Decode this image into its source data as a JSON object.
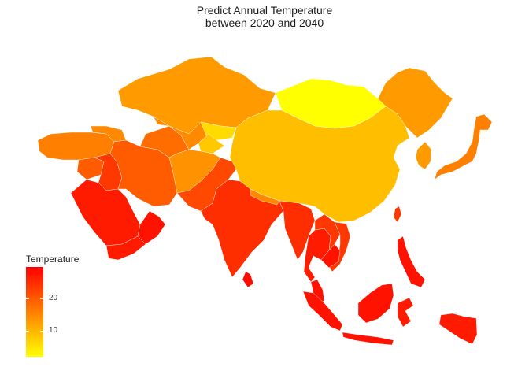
{
  "title_line1": "Predict Annual Temperature",
  "title_line2": "between 2020 and 2040",
  "legend": {
    "title": "Temperature",
    "range": [
      2,
      30
    ],
    "ticks": [
      {
        "value": 20,
        "label": "20"
      },
      {
        "value": 10,
        "label": "10"
      }
    ],
    "colors": [
      "#ffff00",
      "#ffaa00",
      "#ff5500",
      "#ff0000"
    ]
  },
  "regions": [
    {
      "name": "Kazakhstan",
      "temperature": 13
    },
    {
      "name": "Russia (Siberia)",
      "temperature": 13
    },
    {
      "name": "Mongolia",
      "temperature": 2
    },
    {
      "name": "China",
      "temperature": 9
    },
    {
      "name": "Turkey",
      "temperature": 16
    },
    {
      "name": "Caucasus",
      "temperature": 15
    },
    {
      "name": "Syria",
      "temperature": 20
    },
    {
      "name": "Iraq",
      "temperature": 24
    },
    {
      "name": "Iran",
      "temperature": 20
    },
    {
      "name": "Turkmenistan",
      "temperature": 18
    },
    {
      "name": "Uzbekistan",
      "temperature": 15
    },
    {
      "name": "Kyrgyzstan",
      "temperature": 6
    },
    {
      "name": "Tajikistan",
      "temperature": 8
    },
    {
      "name": "Afghanistan",
      "temperature": 14
    },
    {
      "name": "Pakistan",
      "temperature": 22
    },
    {
      "name": "Saudi Arabia",
      "temperature": 27
    },
    {
      "name": "Yemen",
      "temperature": 27
    },
    {
      "name": "Oman",
      "temperature": 28
    },
    {
      "name": "India",
      "temperature": 25
    },
    {
      "name": "Nepal",
      "temperature": 15
    },
    {
      "name": "Myanmar",
      "temperature": 25
    },
    {
      "name": "Thailand",
      "temperature": 27
    },
    {
      "name": "Laos",
      "temperature": 24
    },
    {
      "name": "Vietnam",
      "temperature": 24
    },
    {
      "name": "Cambodia",
      "temperature": 28
    },
    {
      "name": "Sri Lanka",
      "temperature": 29
    },
    {
      "name": "Korea",
      "temperature": 13
    },
    {
      "name": "Japan",
      "temperature": 16
    },
    {
      "name": "Taiwan",
      "temperature": 24
    },
    {
      "name": "Philippines",
      "temperature": 28
    },
    {
      "name": "Malaysia",
      "temperature": 28
    },
    {
      "name": "Borneo",
      "temperature": 28
    },
    {
      "name": "Sumatra",
      "temperature": 28
    },
    {
      "name": "Java",
      "temperature": 28
    },
    {
      "name": "Sulawesi",
      "temperature": 27
    },
    {
      "name": "New Guinea",
      "temperature": 27
    }
  ]
}
